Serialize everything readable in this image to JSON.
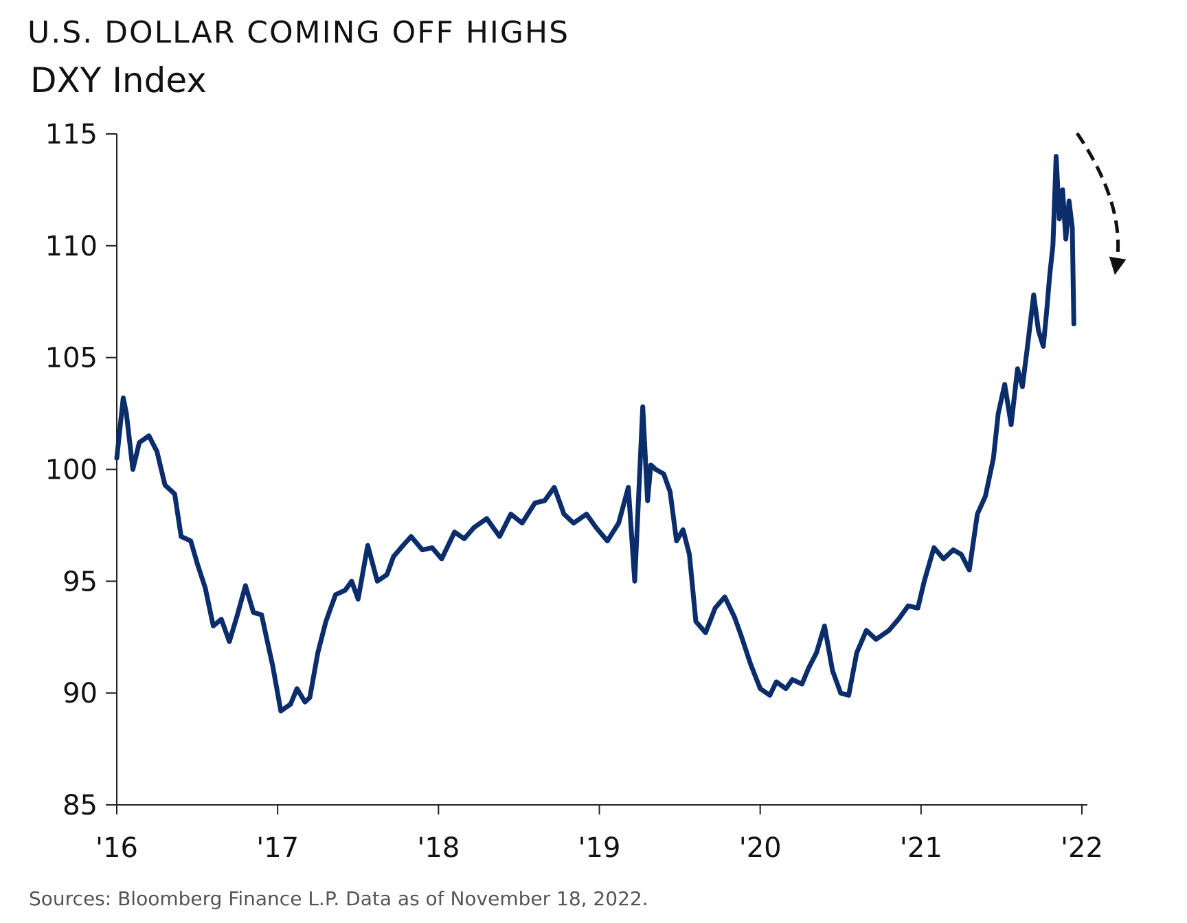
{
  "title": "U.S. DOLLAR COMING OFF HIGHS",
  "subtitle": "DXY Index",
  "source": "Sources: Bloomberg Finance L.P. Data as of November 18, 2022.",
  "colors": {
    "line": "#0b2d6b",
    "axis": "#222222",
    "arrow": "#111111"
  },
  "chart_data": {
    "type": "line",
    "title": "U.S. DOLLAR COMING OFF HIGHS",
    "subtitle": "DXY Index",
    "xlabel": "",
    "ylabel": "",
    "ylim": [
      85,
      115
    ],
    "xlim": [
      2016,
      2022
    ],
    "y_ticks": [
      "115",
      "110",
      "105",
      "100",
      "95",
      "90",
      "85"
    ],
    "x_ticks": [
      "'16",
      "'17",
      "'18",
      "'19",
      "'20",
      "'21",
      "'22"
    ],
    "grid": false,
    "legend": "none",
    "annotation": "dashed downward arrow after peak",
    "series": [
      {
        "x": [
          2016.0,
          2016.04,
          2016.06,
          2016.1,
          2016.14,
          2016.2,
          2016.25,
          2016.3,
          2016.36,
          2016.4,
          2016.46,
          2016.5,
          2016.55,
          2016.6,
          2016.65,
          2016.7,
          2016.75,
          2016.8,
          2016.85,
          2016.9,
          2016.93,
          2016.97,
          2017.02,
          2017.08,
          2017.12,
          2017.17,
          2017.2,
          2017.25,
          2017.3,
          2017.36,
          2017.42,
          2017.46,
          2017.5,
          2017.56,
          2017.62,
          2017.68,
          2017.72,
          2017.78,
          2017.83,
          2017.9,
          2017.96,
          2018.02,
          2018.1,
          2018.16,
          2018.22,
          2018.3,
          2018.38,
          2018.45,
          2018.52,
          2018.6,
          2018.66,
          2018.72,
          2018.78,
          2018.84,
          2018.92,
          2018.98,
          2019.05,
          2019.12,
          2019.18,
          2019.22,
          2019.27,
          2019.3,
          2019.32,
          2019.35,
          2019.4,
          2019.44,
          2019.48,
          2019.52,
          2019.56,
          2019.6,
          2019.66,
          2019.72,
          2019.78,
          2019.84,
          2019.88,
          2019.94,
          2020.0,
          2020.06,
          2020.1,
          2020.16,
          2020.2,
          2020.26,
          2020.3,
          2020.35,
          2020.4,
          2020.45,
          2020.5,
          2020.55,
          2020.6,
          2020.66,
          2020.72,
          2020.8,
          2020.86,
          2020.92,
          2020.98,
          2021.02,
          2021.08,
          2021.14,
          2021.2,
          2021.25,
          2021.3,
          2021.35,
          2021.4,
          2021.45,
          2021.48,
          2021.52,
          2021.56,
          2021.6,
          2021.63,
          2021.66,
          2021.7,
          2021.73,
          2021.76,
          2021.78,
          2021.8,
          2021.82,
          2021.84,
          2021.86,
          2021.88,
          2021.9,
          2021.92,
          2021.94,
          2021.95
        ],
        "values": [
          100.5,
          103.2,
          102.5,
          100.0,
          101.2,
          101.5,
          100.8,
          99.3,
          98.9,
          97.0,
          96.8,
          95.8,
          94.7,
          93.0,
          93.3,
          92.3,
          93.5,
          94.8,
          93.6,
          93.5,
          92.5,
          91.2,
          89.2,
          89.5,
          90.2,
          89.6,
          89.8,
          91.8,
          93.2,
          94.4,
          94.6,
          95.0,
          94.2,
          96.6,
          95.0,
          95.3,
          96.1,
          96.6,
          97.0,
          96.4,
          96.5,
          96.0,
          97.2,
          96.9,
          97.4,
          97.8,
          97.0,
          98.0,
          97.6,
          98.5,
          98.6,
          99.2,
          98.0,
          97.6,
          98.0,
          97.4,
          96.8,
          97.6,
          99.2,
          95.0,
          102.8,
          98.6,
          100.2,
          100.0,
          99.8,
          99.0,
          96.8,
          97.3,
          96.2,
          93.2,
          92.7,
          93.8,
          94.3,
          93.4,
          92.6,
          91.3,
          90.2,
          89.9,
          90.5,
          90.2,
          90.6,
          90.4,
          91.1,
          91.8,
          93.0,
          91.0,
          90.0,
          89.9,
          91.8,
          92.8,
          92.4,
          92.8,
          93.3,
          93.9,
          93.8,
          95.0,
          96.5,
          96.0,
          96.4,
          96.2,
          95.5,
          98.0,
          98.8,
          100.5,
          102.5,
          103.8,
          102.0,
          104.5,
          103.7,
          105.4,
          107.8,
          106.2,
          105.5,
          107.0,
          108.7,
          110.0,
          114.0,
          111.2,
          112.5,
          110.3,
          112.0,
          110.8,
          106.5
        ]
      }
    ]
  }
}
